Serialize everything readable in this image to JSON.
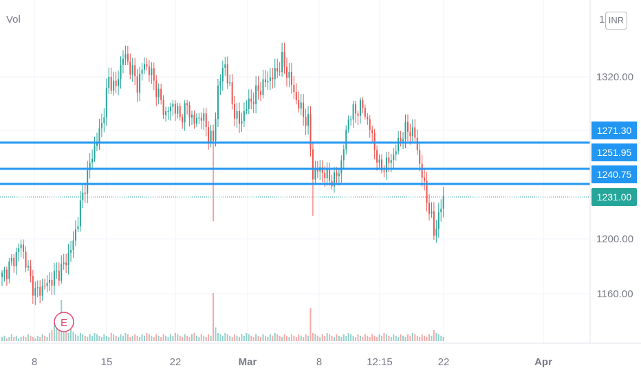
{
  "header": {
    "vol_label": "Vol",
    "currency_prefix": "1",
    "currency": "INR"
  },
  "colors": {
    "up": "#26a69a",
    "down": "#ef5350",
    "level_line": "#2196f3",
    "last_price_tag": "#26a69a",
    "grid": "#f0f3fa",
    "axis_text": "#787b86",
    "earnings_marker": "#e0496b"
  },
  "chart_data": {
    "type": "candlestick",
    "symbol_currency": "INR",
    "x_tick_labels": [
      "8",
      "15",
      "22",
      "Mar",
      "8",
      "12:15",
      "22",
      "Apr"
    ],
    "y_tick_labels": [
      "1320.00",
      "1200.00",
      "1160.00"
    ],
    "ylim": [
      1140,
      1390
    ],
    "grid": true,
    "price_levels": [
      {
        "label": "1271.30",
        "value": 1271.3
      },
      {
        "label": "1251.95",
        "value": 1251.95
      },
      {
        "label": "1240.75",
        "value": 1240.75
      }
    ],
    "last_price": {
      "label": "1231.00",
      "value": 1231.0
    },
    "earnings_marker": "E",
    "anchors": [
      [
        0,
        1172
      ],
      [
        5,
        1185
      ],
      [
        8,
        1196
      ],
      [
        12,
        1170
      ],
      [
        14,
        1160
      ],
      [
        18,
        1165
      ],
      [
        22,
        1172
      ],
      [
        26,
        1180
      ],
      [
        30,
        1197
      ],
      [
        33,
        1224
      ],
      [
        35,
        1240
      ],
      [
        38,
        1262
      ],
      [
        42,
        1285
      ],
      [
        45,
        1318
      ],
      [
        48,
        1312
      ],
      [
        51,
        1336
      ],
      [
        54,
        1328
      ],
      [
        57,
        1314
      ],
      [
        60,
        1330
      ],
      [
        63,
        1322
      ],
      [
        66,
        1306
      ],
      [
        69,
        1292
      ],
      [
        72,
        1300
      ],
      [
        75,
        1290
      ],
      [
        78,
        1298
      ],
      [
        81,
        1286
      ],
      [
        84,
        1292
      ],
      [
        87,
        1278
      ],
      [
        89,
        1272
      ],
      [
        91,
        1312
      ],
      [
        94,
        1330
      ],
      [
        97,
        1300
      ],
      [
        100,
        1285
      ],
      [
        103,
        1298
      ],
      [
        106,
        1305
      ],
      [
        109,
        1312
      ],
      [
        112,
        1318
      ],
      [
        115,
        1322
      ],
      [
        118,
        1332
      ],
      [
        121,
        1320
      ],
      [
        124,
        1303
      ],
      [
        127,
        1292
      ],
      [
        129,
        1286
      ],
      [
        131,
        1248
      ],
      [
        134,
        1252
      ],
      [
        137,
        1246
      ],
      [
        140,
        1243
      ],
      [
        143,
        1256
      ],
      [
        146,
        1290
      ],
      [
        149,
        1295
      ],
      [
        152,
        1298
      ],
      [
        155,
        1282
      ],
      [
        157,
        1268
      ],
      [
        159,
        1252
      ],
      [
        162,
        1255
      ],
      [
        165,
        1262
      ],
      [
        168,
        1275
      ],
      [
        171,
        1282
      ],
      [
        174,
        1276
      ],
      [
        176,
        1256
      ],
      [
        178,
        1238
      ],
      [
        180,
        1222
      ],
      [
        182,
        1205
      ],
      [
        184,
        1216
      ],
      [
        186,
        1231
      ]
    ],
    "volumes": [
      3,
      4,
      2,
      3,
      5,
      3,
      4,
      2,
      3,
      4,
      3,
      5,
      4,
      3,
      2,
      4,
      3,
      5,
      4,
      3,
      6,
      8,
      12,
      10,
      9,
      30,
      18,
      8,
      6,
      10,
      7,
      5,
      4,
      6,
      5,
      4,
      3,
      5,
      4,
      6,
      5,
      4,
      3,
      5,
      4,
      3,
      6,
      5,
      4,
      3,
      5,
      4,
      6,
      5,
      3,
      4,
      5,
      4,
      3,
      5,
      4,
      6,
      5,
      4,
      3,
      5,
      4,
      3,
      5,
      4,
      3,
      5,
      4,
      6,
      5,
      4,
      3,
      5,
      4,
      3,
      5,
      6,
      4,
      3,
      5,
      4,
      3,
      5,
      4,
      35,
      10,
      6,
      5,
      4,
      6,
      5,
      4,
      3,
      5,
      4,
      3,
      5,
      4,
      6,
      5,
      4,
      3,
      5,
      4,
      3,
      5,
      4,
      3,
      5,
      4,
      6,
      5,
      4,
      3,
      5,
      4,
      3,
      5,
      4,
      3,
      5,
      4,
      3,
      5,
      4,
      24,
      6,
      5,
      4,
      3,
      5,
      4,
      6,
      5,
      4,
      3,
      5,
      4,
      3,
      5,
      4,
      6,
      5,
      4,
      3,
      5,
      4,
      3,
      5,
      4,
      3,
      5,
      4,
      3,
      5,
      4,
      6,
      5,
      4,
      3,
      5,
      4,
      3,
      5,
      4,
      3,
      5,
      4,
      6,
      5,
      4,
      3,
      5,
      4,
      3,
      5,
      4,
      8,
      6,
      5,
      4,
      3
    ]
  }
}
